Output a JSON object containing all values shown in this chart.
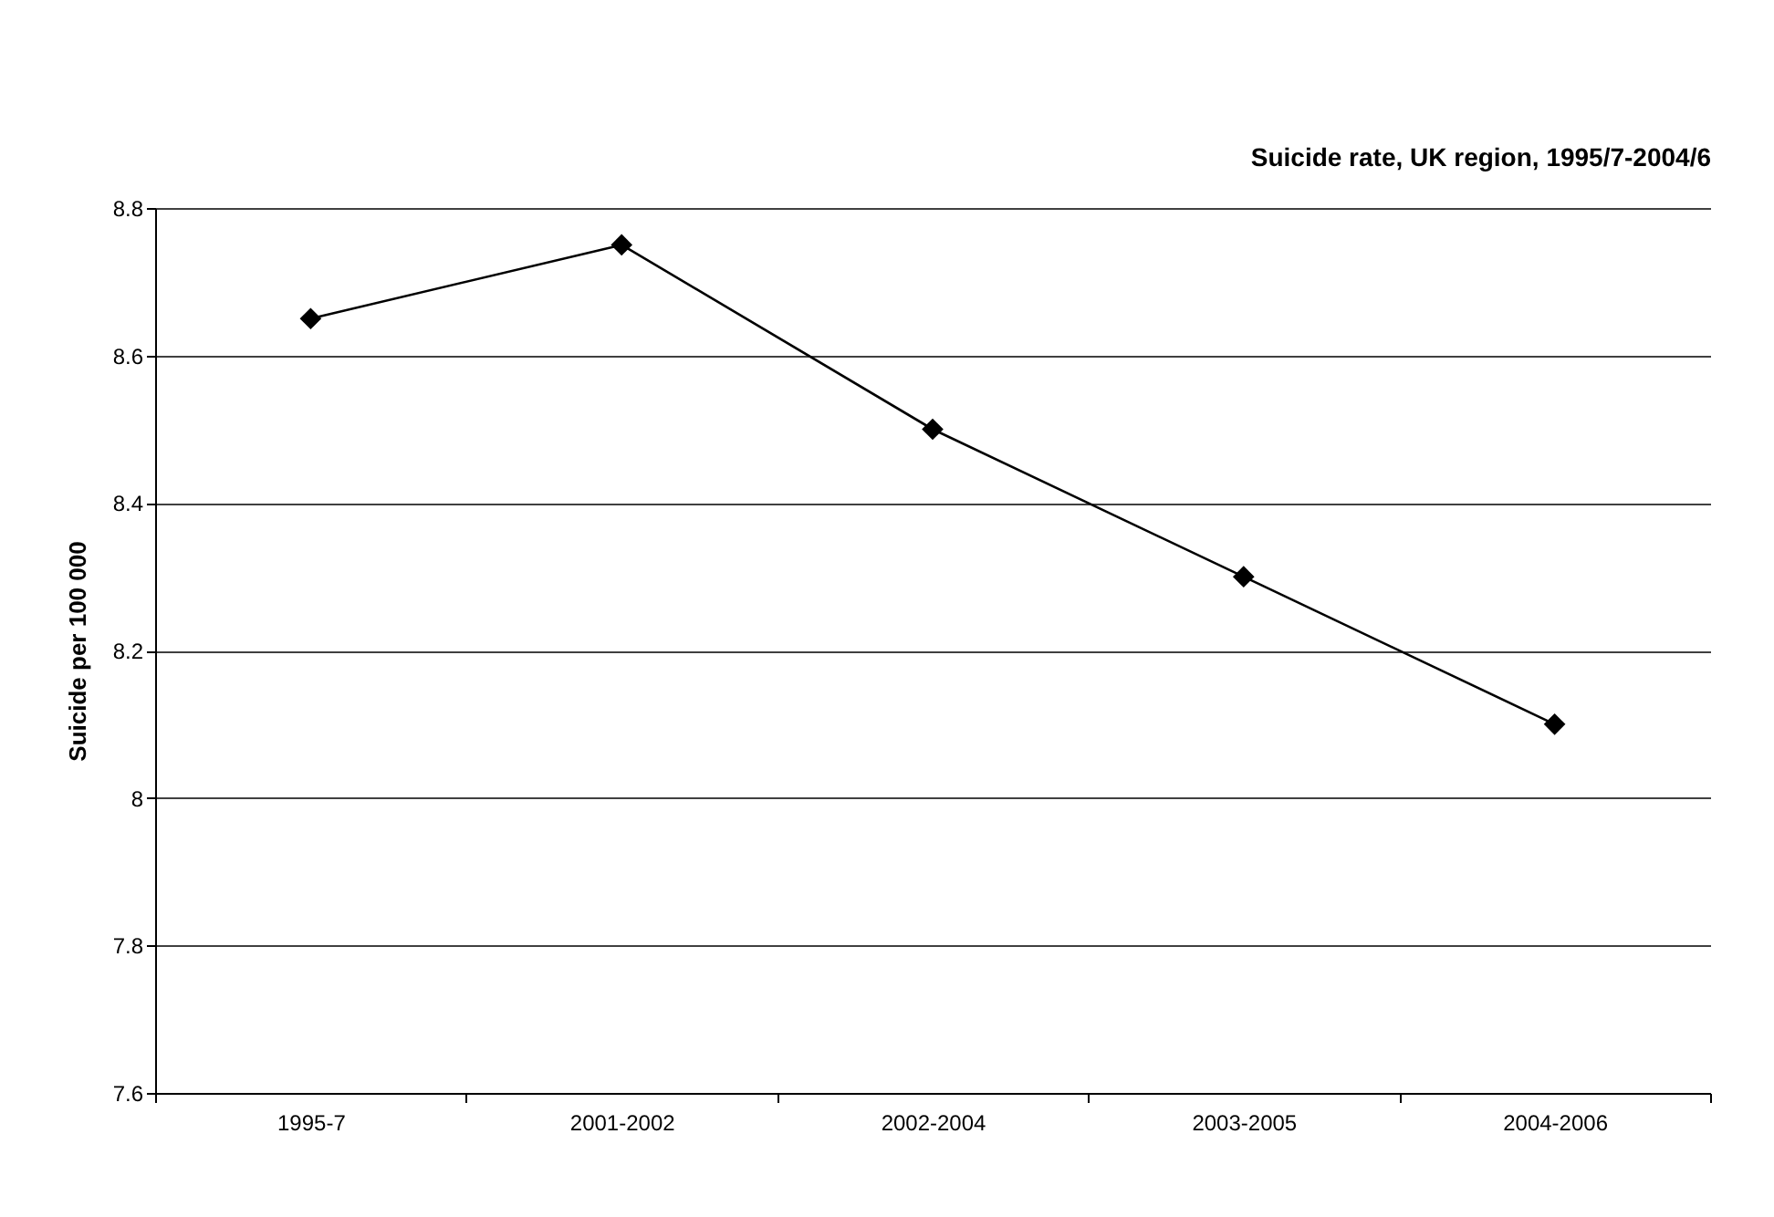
{
  "chart_data": {
    "type": "line",
    "title": "Suicide rate, UK region, 1995/7-2004/6",
    "ylabel": "Suicide per 100 000",
    "categories": [
      "1995-7",
      "2001-2002",
      "2002-2004",
      "2003-2005",
      "2004-2006"
    ],
    "series": [
      {
        "color": "#000000",
        "values": [
          8.65,
          8.75,
          8.5,
          8.3,
          8.1
        ]
      }
    ],
    "ylim": [
      7.6,
      8.8
    ],
    "yticks": [
      7.6,
      7.8,
      8,
      8.2,
      8.4,
      8.6,
      8.8
    ],
    "grid": "y",
    "marker": "diamond",
    "line_style": "solid"
  }
}
